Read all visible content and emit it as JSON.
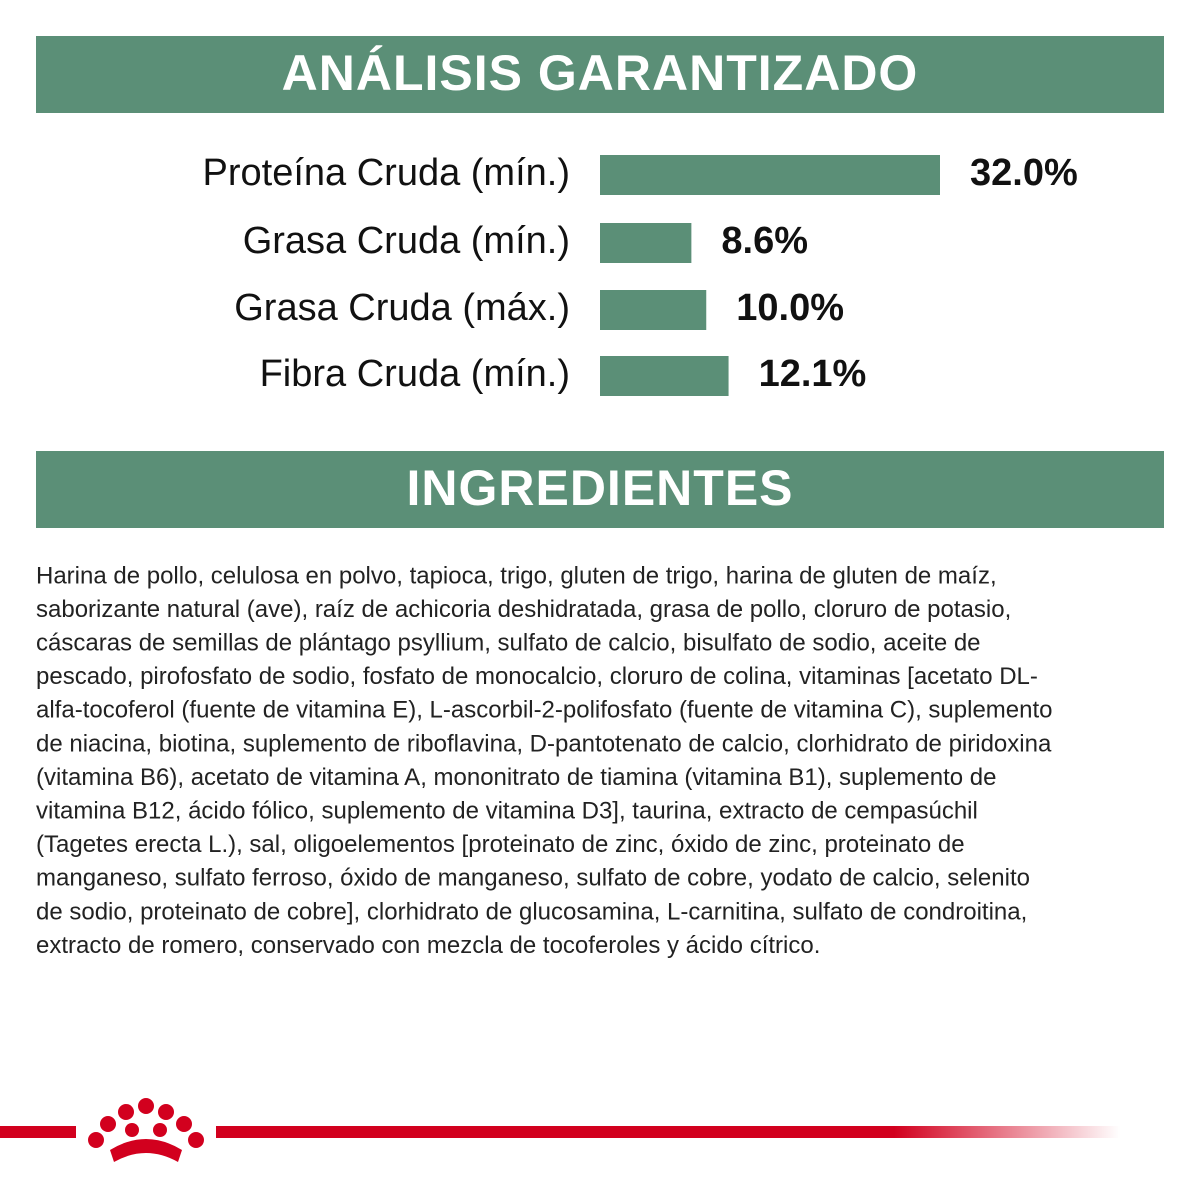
{
  "analysis_title": "ANÁLISIS GARANTIZADO",
  "chart_data": {
    "type": "bar",
    "orientation": "horizontal",
    "categories": [
      "Proteína Cruda (mín.)",
      "Grasa Cruda (mín.)",
      "Grasa Cruda (máx.)",
      "Fibra Cruda (mín.)"
    ],
    "values": [
      32.0,
      8.6,
      10.0,
      12.1
    ],
    "value_labels": [
      "32.0%",
      "8.6%",
      "10.0%",
      "12.1%"
    ],
    "color": "#5b8f77"
  },
  "ingredients_title": "INGREDIENTES",
  "ingredients_lines": [
    "Harina de pollo, celulosa en polvo, tapioca, trigo, gluten de trigo, harina de gluten de maíz,",
    "saborizante natural (ave), raíz de achicoria deshidratada, grasa de pollo, cloruro de potasio,",
    "cáscaras de semillas de plántago psyllium, sulfato de calcio, bisulfato de sodio, aceite de",
    "pescado, pirofosfato de sodio, fosfato de monocalcio, cloruro de colina, vitaminas [acetato DL-",
    "alfa-tocoferol (fuente de vitamina E), L-ascorbil-2-polifosfato (fuente de vitamina C), suplemento",
    "de niacina, biotina, suplemento de riboflavina, D-pantotenato de calcio, clorhidrato de piridoxina",
    "(vitamina B6), acetato de vitamina A, mononitrato de tiamina (vitamina B1), suplemento de",
    "vitamina B12, ácido fólico, suplemento de vitamina D3], taurina, extracto de cempasúchil",
    "(Tagetes erecta L.), sal, oligoelementos [proteinato de zinc, óxido de zinc, proteinato de",
    "manganeso, sulfato ferroso, óxido de manganeso, sulfato de cobre, yodato de calcio, selenito",
    "de sodio, proteinato de cobre], clorhidrato de glucosamina, L-carnitina, sulfato de condroitina,",
    "extracto de romero, conservado con mezcla de tocoferoles y ácido cítrico."
  ]
}
